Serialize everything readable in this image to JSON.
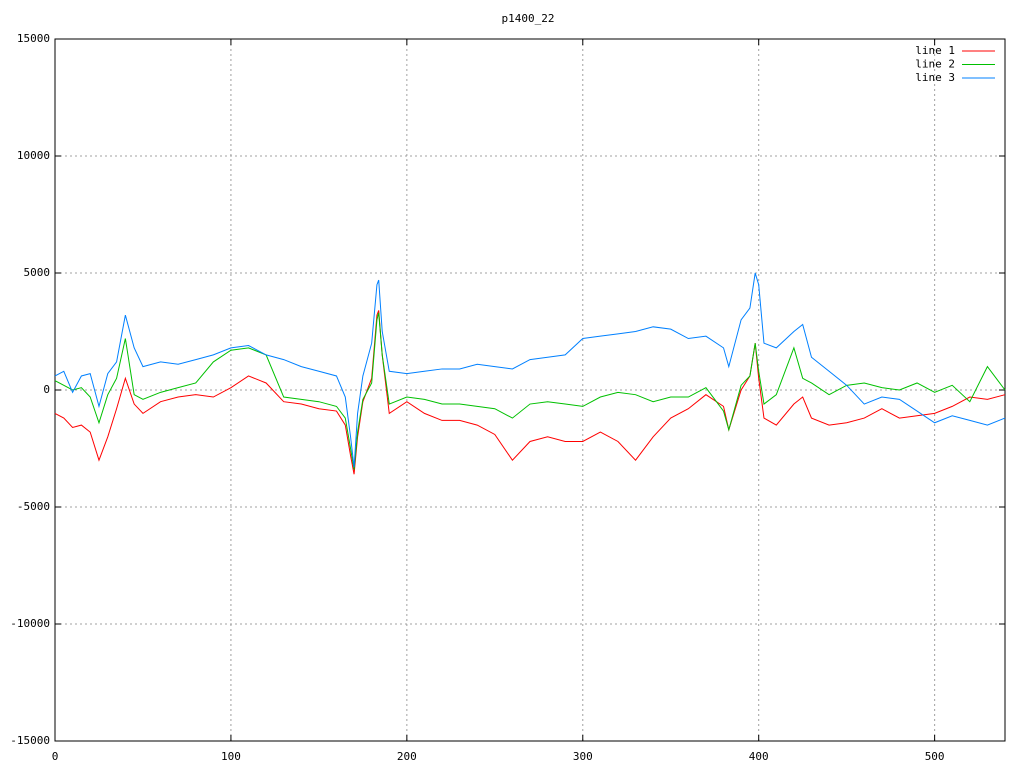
{
  "chart_data": {
    "type": "line",
    "title": "p1400_22",
    "x": [
      0,
      5,
      10,
      15,
      20,
      25,
      30,
      35,
      40,
      45,
      50,
      60,
      70,
      80,
      90,
      100,
      110,
      120,
      130,
      140,
      150,
      160,
      165,
      168,
      170,
      172,
      175,
      180,
      183,
      184,
      186,
      190,
      200,
      210,
      220,
      230,
      240,
      250,
      260,
      270,
      280,
      290,
      300,
      310,
      320,
      330,
      340,
      350,
      360,
      370,
      380,
      383,
      390,
      395,
      398,
      400,
      403,
      410,
      420,
      425,
      430,
      440,
      450,
      460,
      470,
      480,
      490,
      500,
      510,
      520,
      530,
      540
    ],
    "series": [
      {
        "name": "line 1",
        "color": "#ff0000",
        "values": [
          -1000,
          -1200,
          -1600,
          -1500,
          -1800,
          -3000,
          -2000,
          -800,
          500,
          -600,
          -1000,
          -500,
          -300,
          -200,
          -300,
          100,
          600,
          300,
          -500,
          -600,
          -800,
          -900,
          -1500,
          -2800,
          -3600,
          -2000,
          -500,
          500,
          3200,
          3400,
          1500,
          -1000,
          -500,
          -1000,
          -1300,
          -1300,
          -1500,
          -1900,
          -3000,
          -2200,
          -2000,
          -2200,
          -2200,
          -1800,
          -2200,
          -3000,
          -2000,
          -1200,
          -800,
          -200,
          -700,
          -1700,
          0,
          600,
          2000,
          500,
          -1200,
          -1500,
          -600,
          -300,
          -1200,
          -1500,
          -1400,
          -1200,
          -800,
          -1200,
          -1100,
          -1000,
          -700,
          -300,
          -400,
          -200
        ]
      },
      {
        "name": "line 2",
        "color": "#00c000",
        "values": [
          400,
          200,
          0,
          100,
          -300,
          -1400,
          -200,
          500,
          2200,
          -200,
          -400,
          -100,
          100,
          300,
          1200,
          1700,
          1800,
          1500,
          -300,
          -400,
          -500,
          -700,
          -1200,
          -2500,
          -3400,
          -1800,
          -400,
          300,
          3000,
          3300,
          1500,
          -600,
          -300,
          -400,
          -600,
          -600,
          -700,
          -800,
          -1200,
          -600,
          -500,
          -600,
          -700,
          -300,
          -100,
          -200,
          -500,
          -300,
          -300,
          100,
          -900,
          -1700,
          200,
          600,
          2000,
          800,
          -600,
          -200,
          1800,
          500,
          300,
          -200,
          200,
          300,
          100,
          0,
          300,
          -100,
          200,
          -500,
          1000,
          0
        ]
      },
      {
        "name": "line 3",
        "color": "#0080ff",
        "values": [
          600,
          800,
          -100,
          600,
          700,
          -700,
          700,
          1200,
          3200,
          1800,
          1000,
          1200,
          1100,
          1300,
          1500,
          1800,
          1900,
          1500,
          1300,
          1000,
          800,
          600,
          -300,
          -2000,
          -3300,
          -1000,
          600,
          2000,
          4500,
          4700,
          2500,
          800,
          700,
          800,
          900,
          900,
          1100,
          1000,
          900,
          1300,
          1400,
          1500,
          2200,
          2300,
          2400,
          2500,
          2700,
          2600,
          2200,
          2300,
          1800,
          1000,
          3000,
          3500,
          5000,
          4500,
          2000,
          1800,
          2500,
          2800,
          1400,
          800,
          200,
          -600,
          -300,
          -400,
          -900,
          -1400,
          -1100,
          -1300,
          -1500,
          -1200
        ]
      }
    ],
    "xlim": [
      0,
      540
    ],
    "xticks": [
      0,
      100,
      200,
      300,
      400,
      500
    ],
    "ylim": [
      -15000,
      15000
    ],
    "yticks": [
      -15000,
      -10000,
      -5000,
      0,
      5000,
      10000,
      15000
    ],
    "grid": true,
    "legend": "top-right"
  }
}
